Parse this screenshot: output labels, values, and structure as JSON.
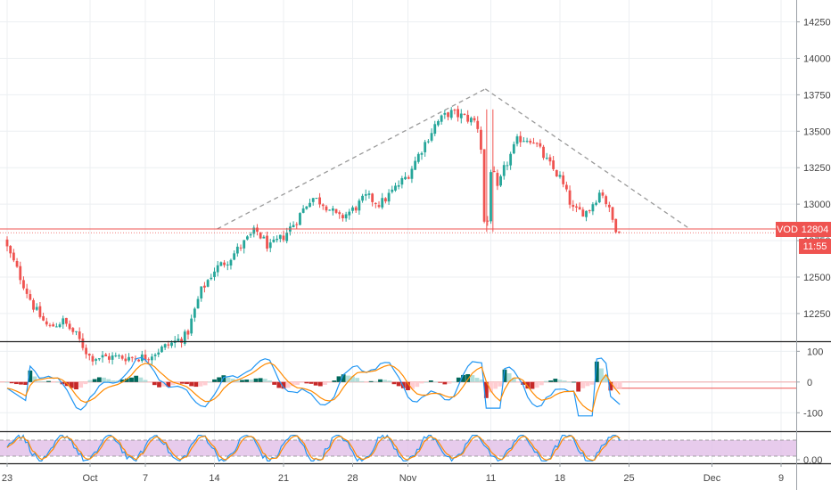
{
  "chart_data": [
    {
      "type": "candlestick",
      "panel": "price",
      "y_ticks": [
        12250,
        12500,
        12750,
        13000,
        13250,
        13500,
        13750,
        14000,
        14250
      ],
      "ylim": [
        12060,
        14400
      ],
      "x_ticks": [
        {
          "label": "23",
          "index": 0
        },
        {
          "label": "Oct",
          "index": 6
        },
        {
          "label": "7",
          "index": 10
        },
        {
          "label": "14",
          "index": 15
        },
        {
          "label": "21",
          "index": 20
        },
        {
          "label": "28",
          "index": 25
        },
        {
          "label": "Nov",
          "index": 29
        },
        {
          "label": "11",
          "index": 35
        },
        {
          "label": "18",
          "index": 40
        },
        {
          "label": "25",
          "index": 45
        },
        {
          "label": "Dec",
          "index": 51
        },
        {
          "label": "9",
          "index": 56
        }
      ],
      "symbol_label": "VOD",
      "last_price": "12804",
      "countdown": "11:55",
      "last_price_value": 12804,
      "candles_anchor": [
        [
          0,
          12700
        ],
        [
          2,
          12280
        ],
        [
          3,
          12150
        ],
        [
          4,
          12200
        ],
        [
          5,
          12100
        ],
        [
          6,
          11950
        ],
        [
          10,
          11950
        ],
        [
          13,
          12100
        ],
        [
          14,
          12400
        ],
        [
          15,
          12550
        ],
        [
          16,
          12620
        ],
        [
          17,
          12720
        ],
        [
          18,
          12820
        ],
        [
          19,
          12700
        ],
        [
          20,
          12780
        ],
        [
          21,
          12900
        ],
        [
          22,
          13050
        ],
        [
          23,
          13000
        ],
        [
          24,
          12900
        ],
        [
          25,
          12960
        ],
        [
          26,
          13050
        ],
        [
          27,
          13000
        ],
        [
          28,
          13100
        ],
        [
          29,
          13200
        ],
        [
          30,
          13380
        ],
        [
          31,
          13550
        ],
        [
          32,
          13630
        ],
        [
          33,
          13600
        ],
        [
          34,
          13560
        ],
        [
          35,
          12950
        ],
        [
          36,
          13250
        ],
        [
          37,
          13450
        ],
        [
          38,
          13450
        ],
        [
          39,
          13300
        ],
        [
          40,
          13180
        ],
        [
          41,
          12950
        ],
        [
          42,
          12950
        ],
        [
          43,
          13100
        ],
        [
          44,
          12840
        ]
      ],
      "trendlines": [
        {
          "from": [
            15.2,
            12830
          ],
          "to": [
            34.6,
            13790
          ]
        },
        {
          "from": [
            34.6,
            13790
          ],
          "to": [
            49.4,
            12830
          ]
        }
      ],
      "horizontal_line": 12830,
      "colors": {
        "up": "#26a69a",
        "down": "#ef5350",
        "line": "#ef5350",
        "trend": "#9a9a9a",
        "grid": "#eceff2"
      }
    },
    {
      "type": "line+histogram",
      "panel": "oscillator",
      "y_ticks": [
        100,
        0,
        -100
      ],
      "ylim": [
        -160,
        130
      ],
      "series_colors": [
        "#2196f3",
        "#ff8a00"
      ],
      "hist_colors": {
        "pos": "#00695c",
        "pos_light": "#b2dfdb",
        "neg": "#c62828",
        "neg_light": "#ffcdd2"
      }
    },
    {
      "type": "line",
      "panel": "stochastic",
      "y_ticks": [
        "0.00"
      ],
      "bands": [
        20,
        80
      ],
      "series_colors": [
        "#2196f3",
        "#ff8a00"
      ],
      "band_fill": "#e1bee7"
    }
  ]
}
